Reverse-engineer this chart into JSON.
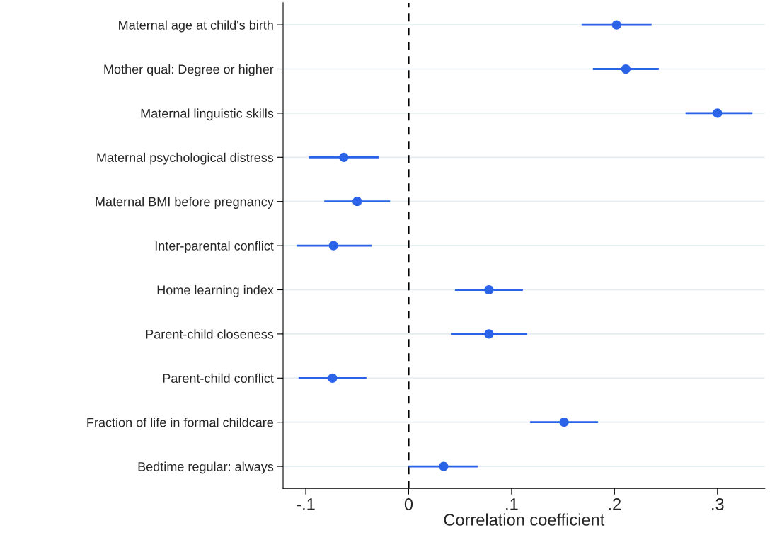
{
  "chart_data": {
    "type": "scatter",
    "orientation": "horizontal",
    "xlabel": "Correlation coefficient",
    "categories": [
      "Maternal age at child's birth",
      "Mother qual: Degree or higher",
      "Maternal linguistic skills",
      "Maternal psychological distress",
      "Maternal BMI before pregnancy",
      "Inter-parental conflict",
      "Home learning index",
      "Parent-child closeness",
      "Parent-child conflict",
      "Fraction of life in formal childcare",
      "Bedtime regular: always"
    ],
    "series": [
      {
        "color": "#2a62e8",
        "values": [
          0.202,
          0.211,
          0.3,
          -0.063,
          -0.05,
          -0.073,
          0.078,
          0.078,
          -0.074,
          0.151,
          0.034
        ],
        "errors": [
          [
            0.168,
            0.236
          ],
          [
            0.179,
            0.243
          ],
          [
            0.269,
            0.334
          ],
          [
            -0.097,
            -0.029
          ],
          [
            -0.082,
            -0.018
          ],
          [
            -0.109,
            -0.036
          ],
          [
            0.045,
            0.111
          ],
          [
            0.041,
            0.115
          ],
          [
            -0.107,
            -0.041
          ],
          [
            0.118,
            0.184
          ],
          [
            0.0,
            0.067
          ]
        ]
      }
    ],
    "xlim": [
      -0.122,
      0.346
    ],
    "xticks": [
      {
        "value": -0.1,
        "label": "-.1"
      },
      0,
      {
        "value": 0.1,
        "label": ".1"
      },
      {
        "value": 0.2,
        "label": ".2"
      },
      {
        "value": 0.3,
        "label": ".3"
      }
    ],
    "ref_lines": [
      {
        "axis": "x",
        "value": 0,
        "color": "#000000",
        "line_style": "dashed"
      }
    ],
    "grid": "y",
    "marker": "circle"
  }
}
